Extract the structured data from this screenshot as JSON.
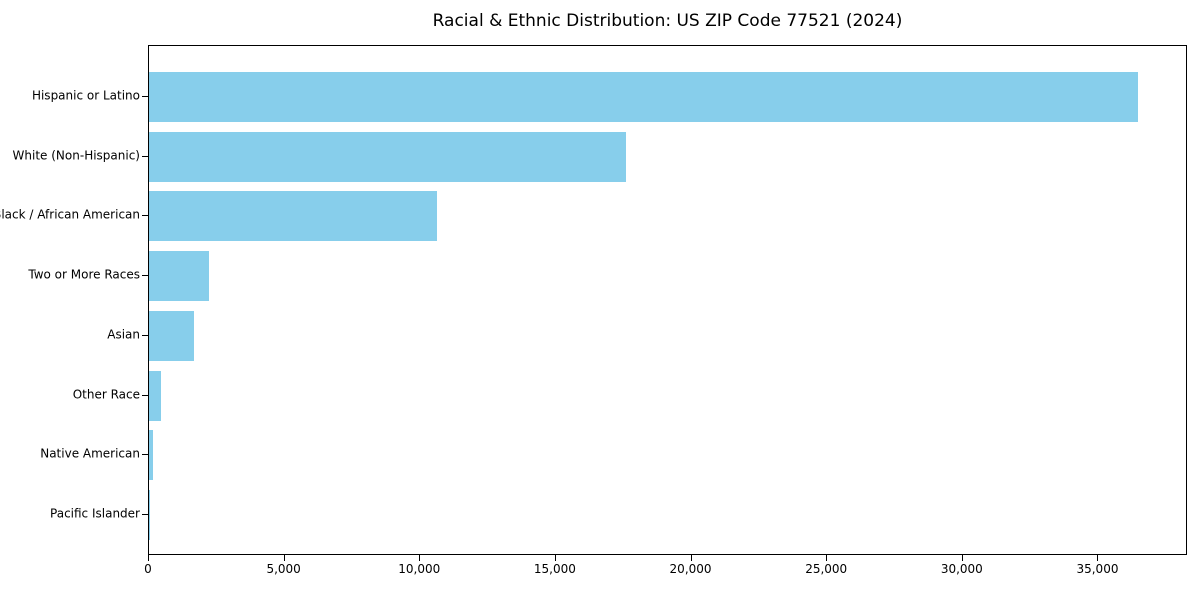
{
  "chart_data": {
    "type": "bar",
    "orientation": "horizontal",
    "title": "Racial & Ethnic Distribution: US ZIP Code 77521 (2024)",
    "categories": [
      "Hispanic or Latino",
      "White (Non-Hispanic)",
      "Black / African American",
      "Two or More Races",
      "Asian",
      "Other Race",
      "Native American",
      "Pacific Islander"
    ],
    "values": [
      36460,
      17590,
      10600,
      2200,
      1660,
      460,
      140,
      20
    ],
    "xlabel": "",
    "ylabel": "",
    "xlim": [
      0,
      38300
    ],
    "xticks": [
      0,
      5000,
      10000,
      15000,
      20000,
      25000,
      30000,
      35000
    ],
    "xtick_labels": [
      "0",
      "5,000",
      "10,000",
      "15,000",
      "20,000",
      "25,000",
      "30,000",
      "35,000"
    ],
    "grid": "off",
    "legend": "none",
    "bar_color": "#87CEEB",
    "frame_color": "#000000",
    "background_color": "#ffffff",
    "largest_category_on_top": true
  }
}
